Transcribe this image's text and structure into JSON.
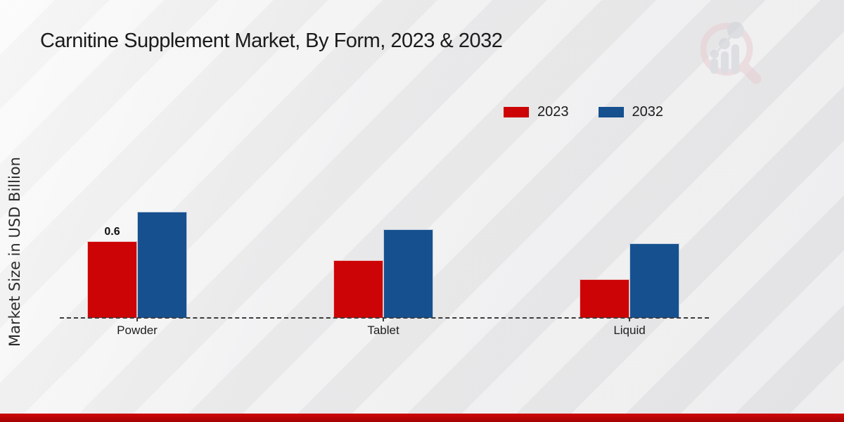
{
  "title": "Carnitine Supplement Market, By Form, 2023 & 2032",
  "ylabel": "Market Size in USD Billion",
  "accent_colors": {
    "red": "#cc0406",
    "blue": "#16508f",
    "footer_red": "#c00505"
  },
  "watermark_icon": "magnifier-bar-chart-logo",
  "chart_data": {
    "type": "bar",
    "title": "Carnitine Supplement Market, By Form, 2023 & 2032",
    "xlabel": "",
    "ylabel": "Market Size in USD Billion",
    "categories": [
      "Powder",
      "Tablet",
      "Liquid"
    ],
    "series": [
      {
        "name": "2023",
        "color": "#cc0406",
        "values": [
          0.6,
          0.45,
          0.3
        ],
        "labels": [
          "0.6",
          "",
          ""
        ]
      },
      {
        "name": "2032",
        "color": "#16508f",
        "values": [
          0.83,
          0.69,
          0.58
        ],
        "labels": [
          "",
          "",
          ""
        ]
      }
    ],
    "ylim": [
      0,
      1.1
    ],
    "grid": false,
    "axis_style": "dashed-baseline-only",
    "legend_position": "top-right"
  }
}
